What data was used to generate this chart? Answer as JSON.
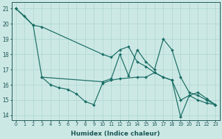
{
  "xlabel": "Humidex (Indice chaleur)",
  "bg_color": "#cce8e4",
  "grid_color": "#b0d8d4",
  "line_color": "#1a6e66",
  "xlim": [
    -0.5,
    23.5
  ],
  "ylim": [
    13.7,
    21.4
  ],
  "xtick_labels": [
    "0",
    "1",
    "2",
    "3",
    "4",
    "5",
    "6",
    "7",
    "8",
    "9",
    "10",
    "11",
    "12",
    "13",
    "14",
    "15",
    "16",
    "17",
    "18",
    "19",
    "20",
    "21",
    "22",
    "23"
  ],
  "ytick_labels": [
    "14",
    "15",
    "16",
    "17",
    "18",
    "19",
    "20",
    "21"
  ],
  "series": [
    {
      "x": [
        0,
        1,
        2,
        3,
        10,
        11,
        12,
        13,
        14,
        15,
        16,
        17,
        18,
        19,
        20,
        21,
        22,
        23
      ],
      "y": [
        21,
        20.5,
        19.9,
        19.8,
        18.0,
        17.8,
        18.3,
        18.5,
        17.5,
        17.2,
        16.8,
        16.5,
        16.3,
        15.0,
        15.3,
        15.0,
        14.8,
        14.7
      ]
    },
    {
      "x": [
        0,
        2,
        3,
        10,
        11,
        12,
        13,
        14,
        15,
        16,
        17,
        18,
        19,
        20,
        21,
        22,
        23
      ],
      "y": [
        21,
        19.9,
        16.5,
        16.2,
        16.4,
        18.0,
        16.6,
        18.3,
        17.5,
        17.0,
        19.0,
        18.3,
        16.5,
        15.5,
        15.3,
        15.0,
        14.7
      ]
    },
    {
      "x": [
        3,
        4,
        5,
        6,
        7,
        8,
        9,
        10,
        11,
        12,
        14,
        15,
        16,
        17,
        18,
        19,
        20,
        21,
        22,
        23
      ],
      "y": [
        16.5,
        16.0,
        15.8,
        15.7,
        15.4,
        14.9,
        14.7,
        16.1,
        16.3,
        16.4,
        16.5,
        16.5,
        16.8,
        16.5,
        16.3,
        13.9,
        15.3,
        15.5,
        15.1,
        14.7
      ]
    }
  ]
}
